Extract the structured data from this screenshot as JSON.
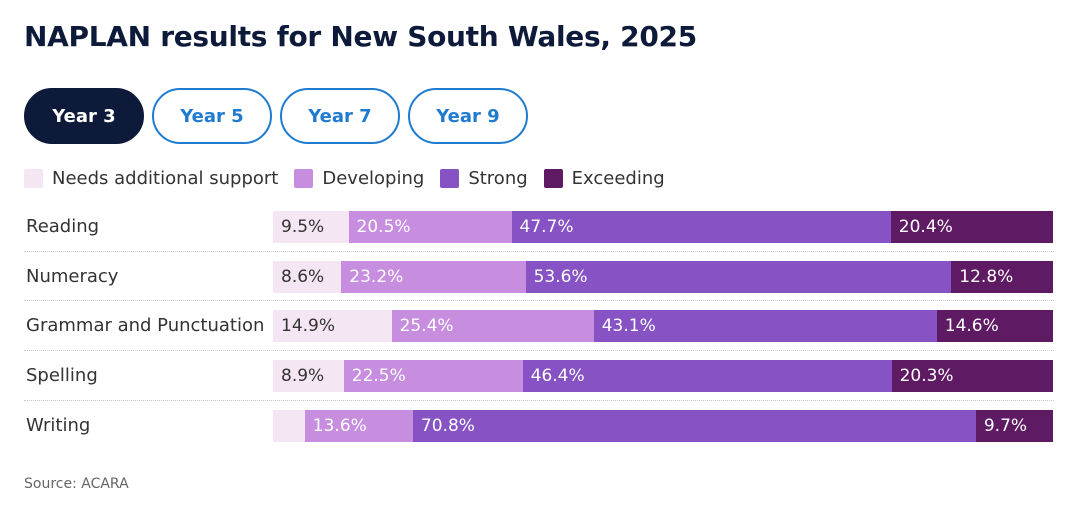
{
  "title": "NAPLAN results for New South Wales, 2025",
  "tabs": [
    {
      "label": "Year 3",
      "active": true
    },
    {
      "label": "Year 5",
      "active": false
    },
    {
      "label": "Year 7",
      "active": false
    },
    {
      "label": "Year 9",
      "active": false
    }
  ],
  "colors": {
    "needs_support": "#f4e6f2",
    "developing": "#c78ee0",
    "strong": "#8652c4",
    "exceeding": "#5e1a62",
    "tab_active_bg": "#0e1a3a",
    "tab_accent": "#1f7bd0"
  },
  "source": "Source: ACARA",
  "chart_data": {
    "type": "bar",
    "orientation": "horizontal",
    "stacked": true,
    "categories": [
      "Reading",
      "Numeracy",
      "Grammar and Punctuation",
      "Spelling",
      "Writing"
    ],
    "series": [
      {
        "name": "Needs additional support",
        "values": [
          9.5,
          8.6,
          14.9,
          8.9,
          4.0
        ],
        "labels": [
          "9.5%",
          "8.6%",
          "14.9%",
          "8.9%",
          ""
        ]
      },
      {
        "name": "Developing",
        "values": [
          20.5,
          23.2,
          25.4,
          22.5,
          13.6
        ],
        "labels": [
          "20.5%",
          "23.2%",
          "25.4%",
          "22.5%",
          "13.6%"
        ]
      },
      {
        "name": "Strong",
        "values": [
          47.7,
          53.6,
          43.1,
          46.4,
          70.8
        ],
        "labels": [
          "47.7%",
          "53.6%",
          "43.1%",
          "46.4%",
          "70.8%"
        ]
      },
      {
        "name": "Exceeding",
        "values": [
          20.4,
          12.8,
          14.6,
          20.3,
          9.7
        ],
        "labels": [
          "20.4%",
          "12.8%",
          "14.6%",
          "20.3%",
          "9.7%"
        ]
      }
    ],
    "title": "NAPLAN results for New South Wales, 2025",
    "xlim": [
      0,
      100
    ],
    "legend": "top-left",
    "grid": false
  }
}
